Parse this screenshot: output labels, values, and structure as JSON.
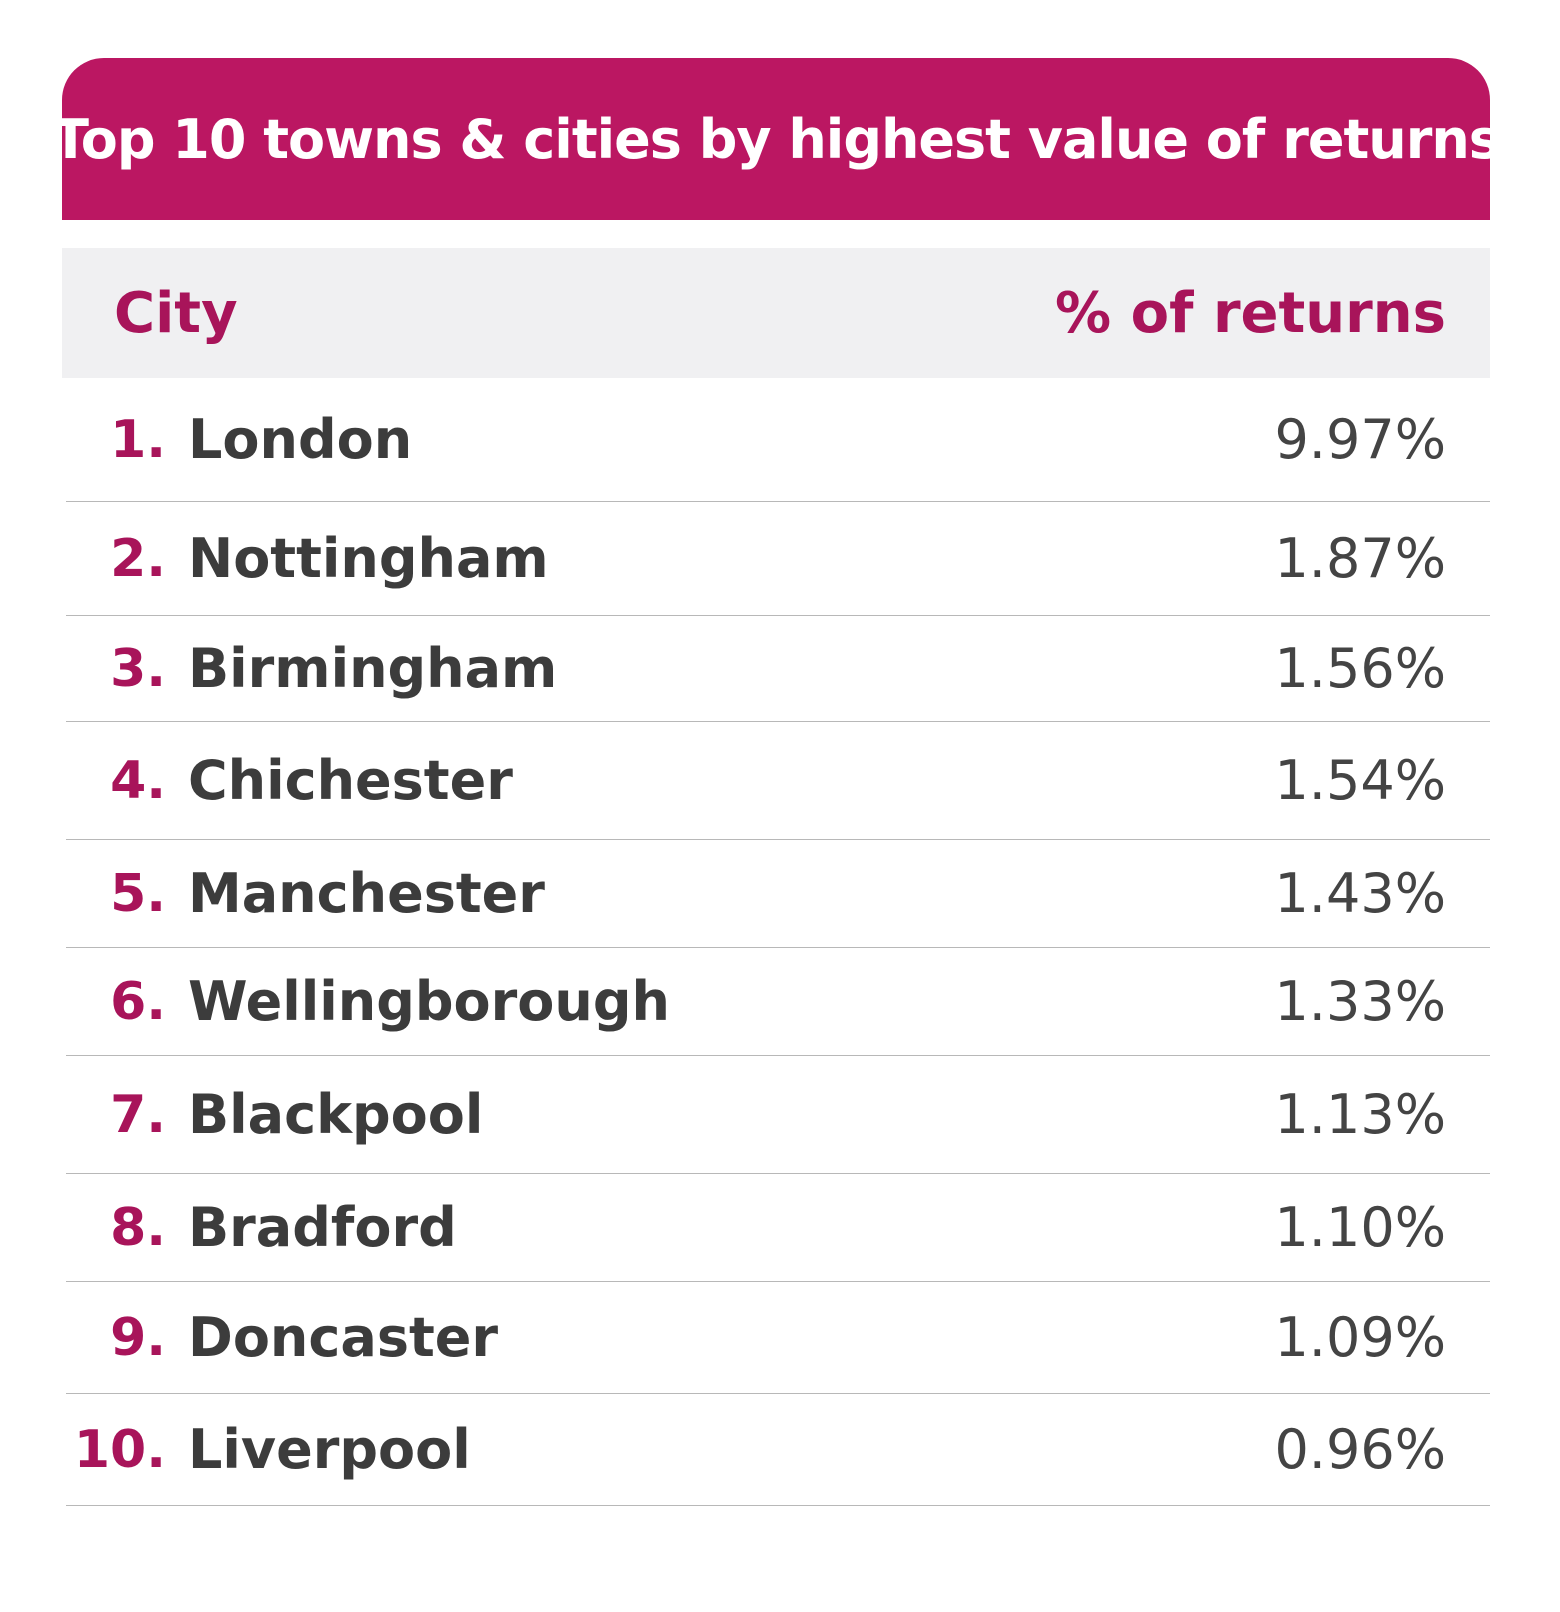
{
  "chart_data": {
    "type": "table",
    "title": "Top 10 towns & cities by highest value of returns",
    "columns": [
      "City",
      "% of returns"
    ],
    "rows": [
      {
        "rank": "1.",
        "city": "London",
        "value": "9.97%"
      },
      {
        "rank": "2.",
        "city": "Nottingham",
        "value": "1.87%"
      },
      {
        "rank": "3.",
        "city": "Birmingham",
        "value": "1.56%"
      },
      {
        "rank": "4.",
        "city": "Chichester",
        "value": "1.54%"
      },
      {
        "rank": "5.",
        "city": "Manchester",
        "value": "1.43%"
      },
      {
        "rank": "6.",
        "city": "Wellingborough",
        "value": "1.33%"
      },
      {
        "rank": "7.",
        "city": "Blackpool",
        "value": "1.13%"
      },
      {
        "rank": "8.",
        "city": "Bradford",
        "value": "1.10%"
      },
      {
        "rank": "9.",
        "city": "Doncaster",
        "value": "1.09%"
      },
      {
        "rank": "10.",
        "city": "Liverpool",
        "value": "0.96%"
      }
    ]
  },
  "colors": {
    "accent": "#bb1762",
    "header_text": "#a8145a",
    "header_bg": "#f0f0f2",
    "body_text": "#3c3c3c"
  }
}
